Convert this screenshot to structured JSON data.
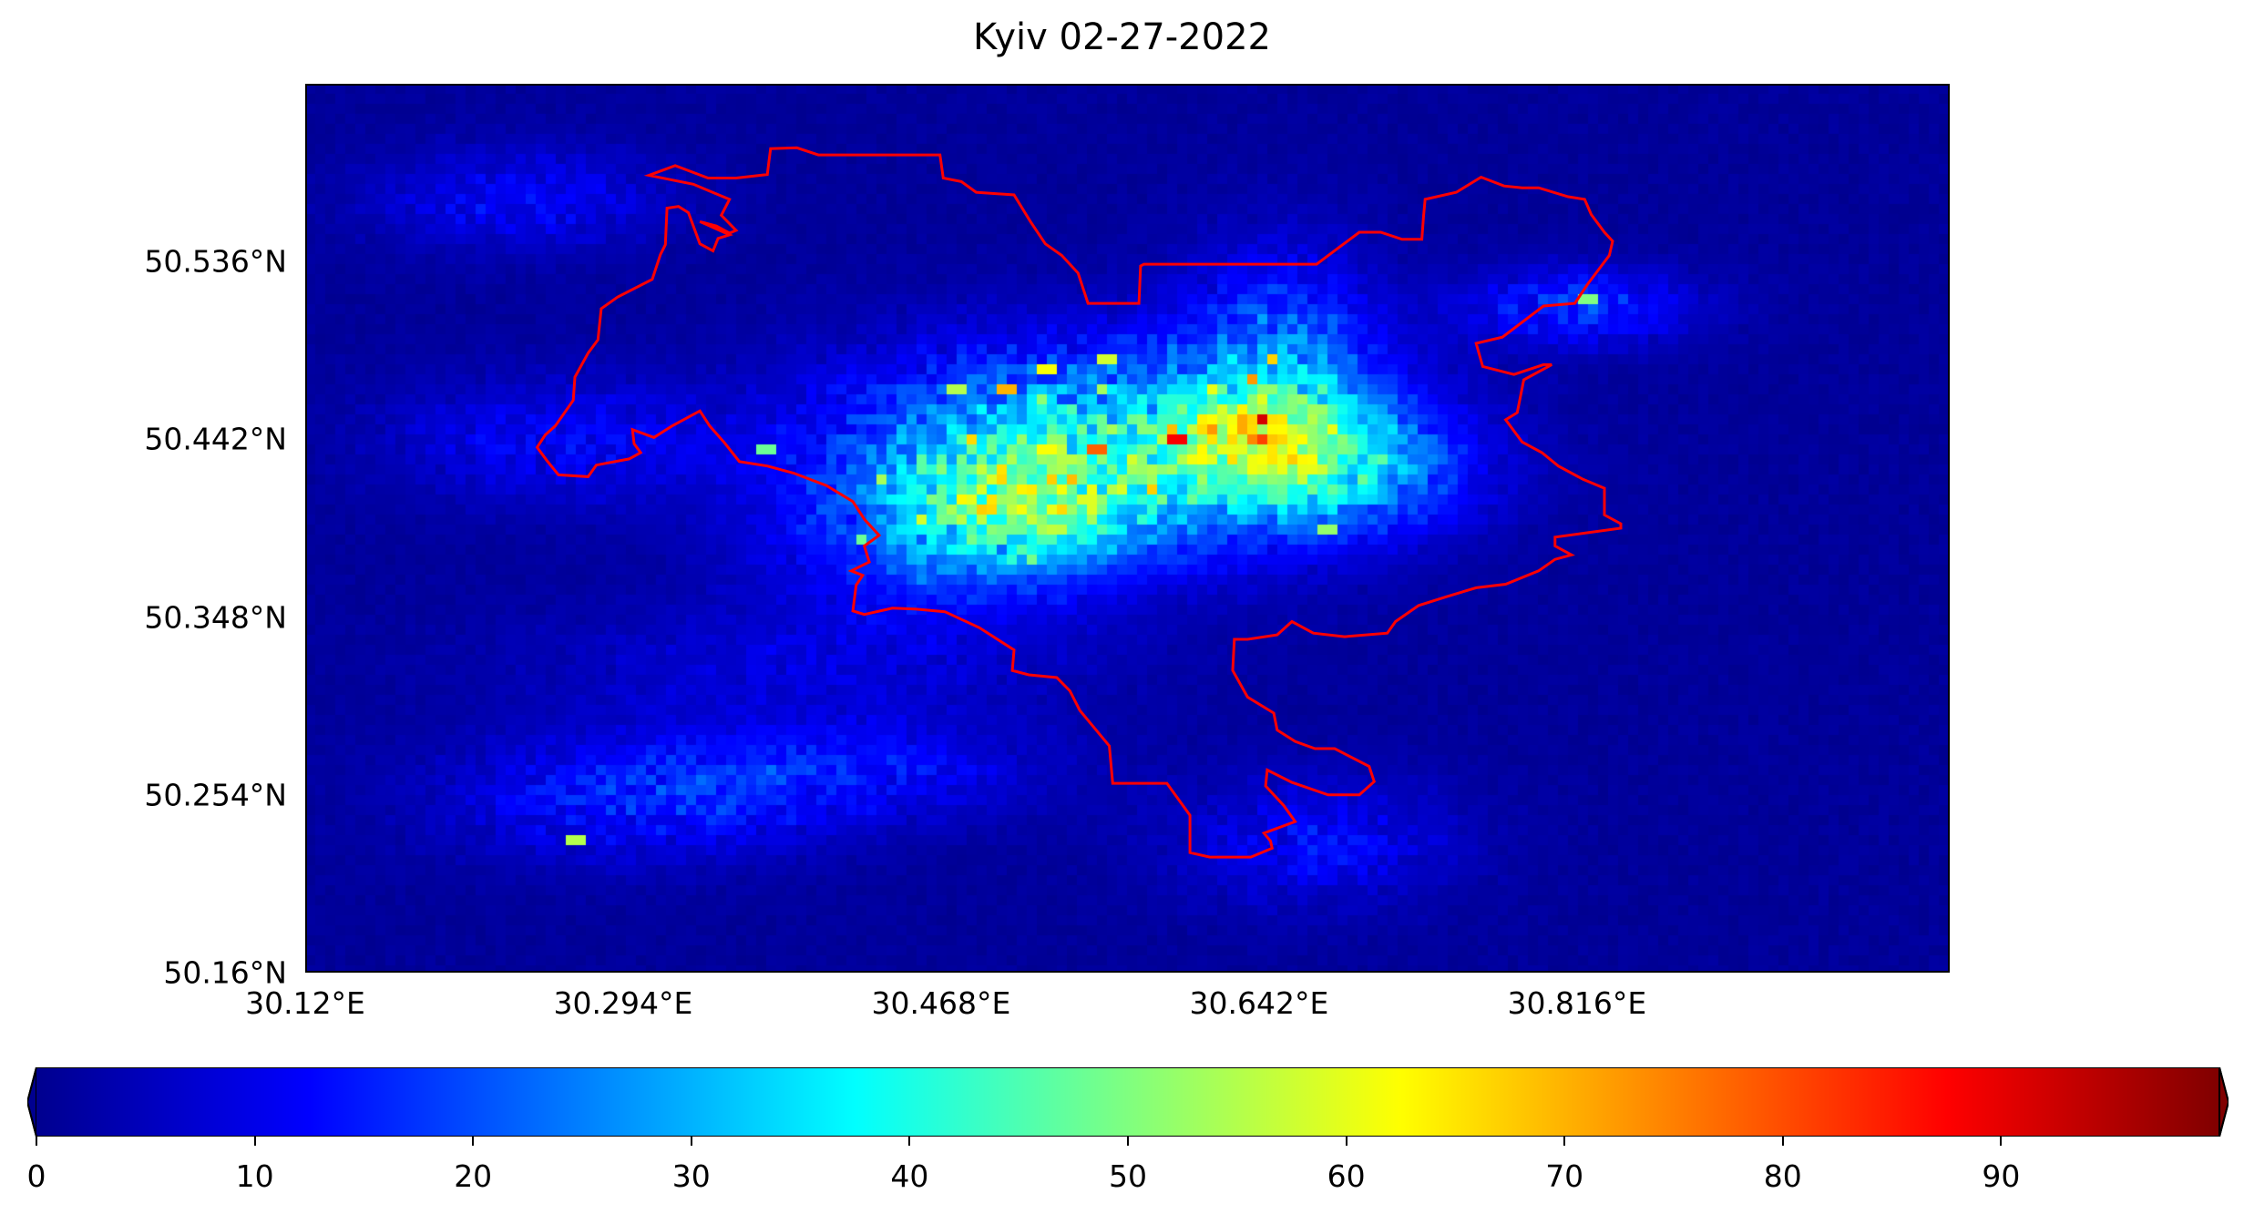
{
  "title": "Kyiv 02-27-2022",
  "map": {
    "lon_range": [
      30.12,
      31.02
    ],
    "lat_range": [
      50.16,
      50.63
    ],
    "colormap": "jet",
    "boundary_color": "#ff0000",
    "background_value_color": "#00008f",
    "y_ticks": [
      {
        "value": 50.536,
        "label": "50.536°N"
      },
      {
        "value": 50.442,
        "label": "50.442°N"
      },
      {
        "value": 50.348,
        "label": "50.348°N"
      },
      {
        "value": 50.254,
        "label": "50.254°N"
      },
      {
        "value": 50.16,
        "label": "50.16°N"
      }
    ],
    "x_ticks": [
      {
        "value": 30.12,
        "label": "30.12°E"
      },
      {
        "value": 30.294,
        "label": "30.294°E"
      },
      {
        "value": 30.468,
        "label": "30.468°E"
      },
      {
        "value": 30.642,
        "label": "30.642°E"
      },
      {
        "value": 30.816,
        "label": "30.816°E"
      }
    ]
  },
  "colorbar": {
    "range": [
      0,
      100
    ],
    "extend": "both",
    "ticks": [
      0,
      10,
      20,
      30,
      40,
      50,
      60,
      70,
      80,
      90
    ]
  }
}
